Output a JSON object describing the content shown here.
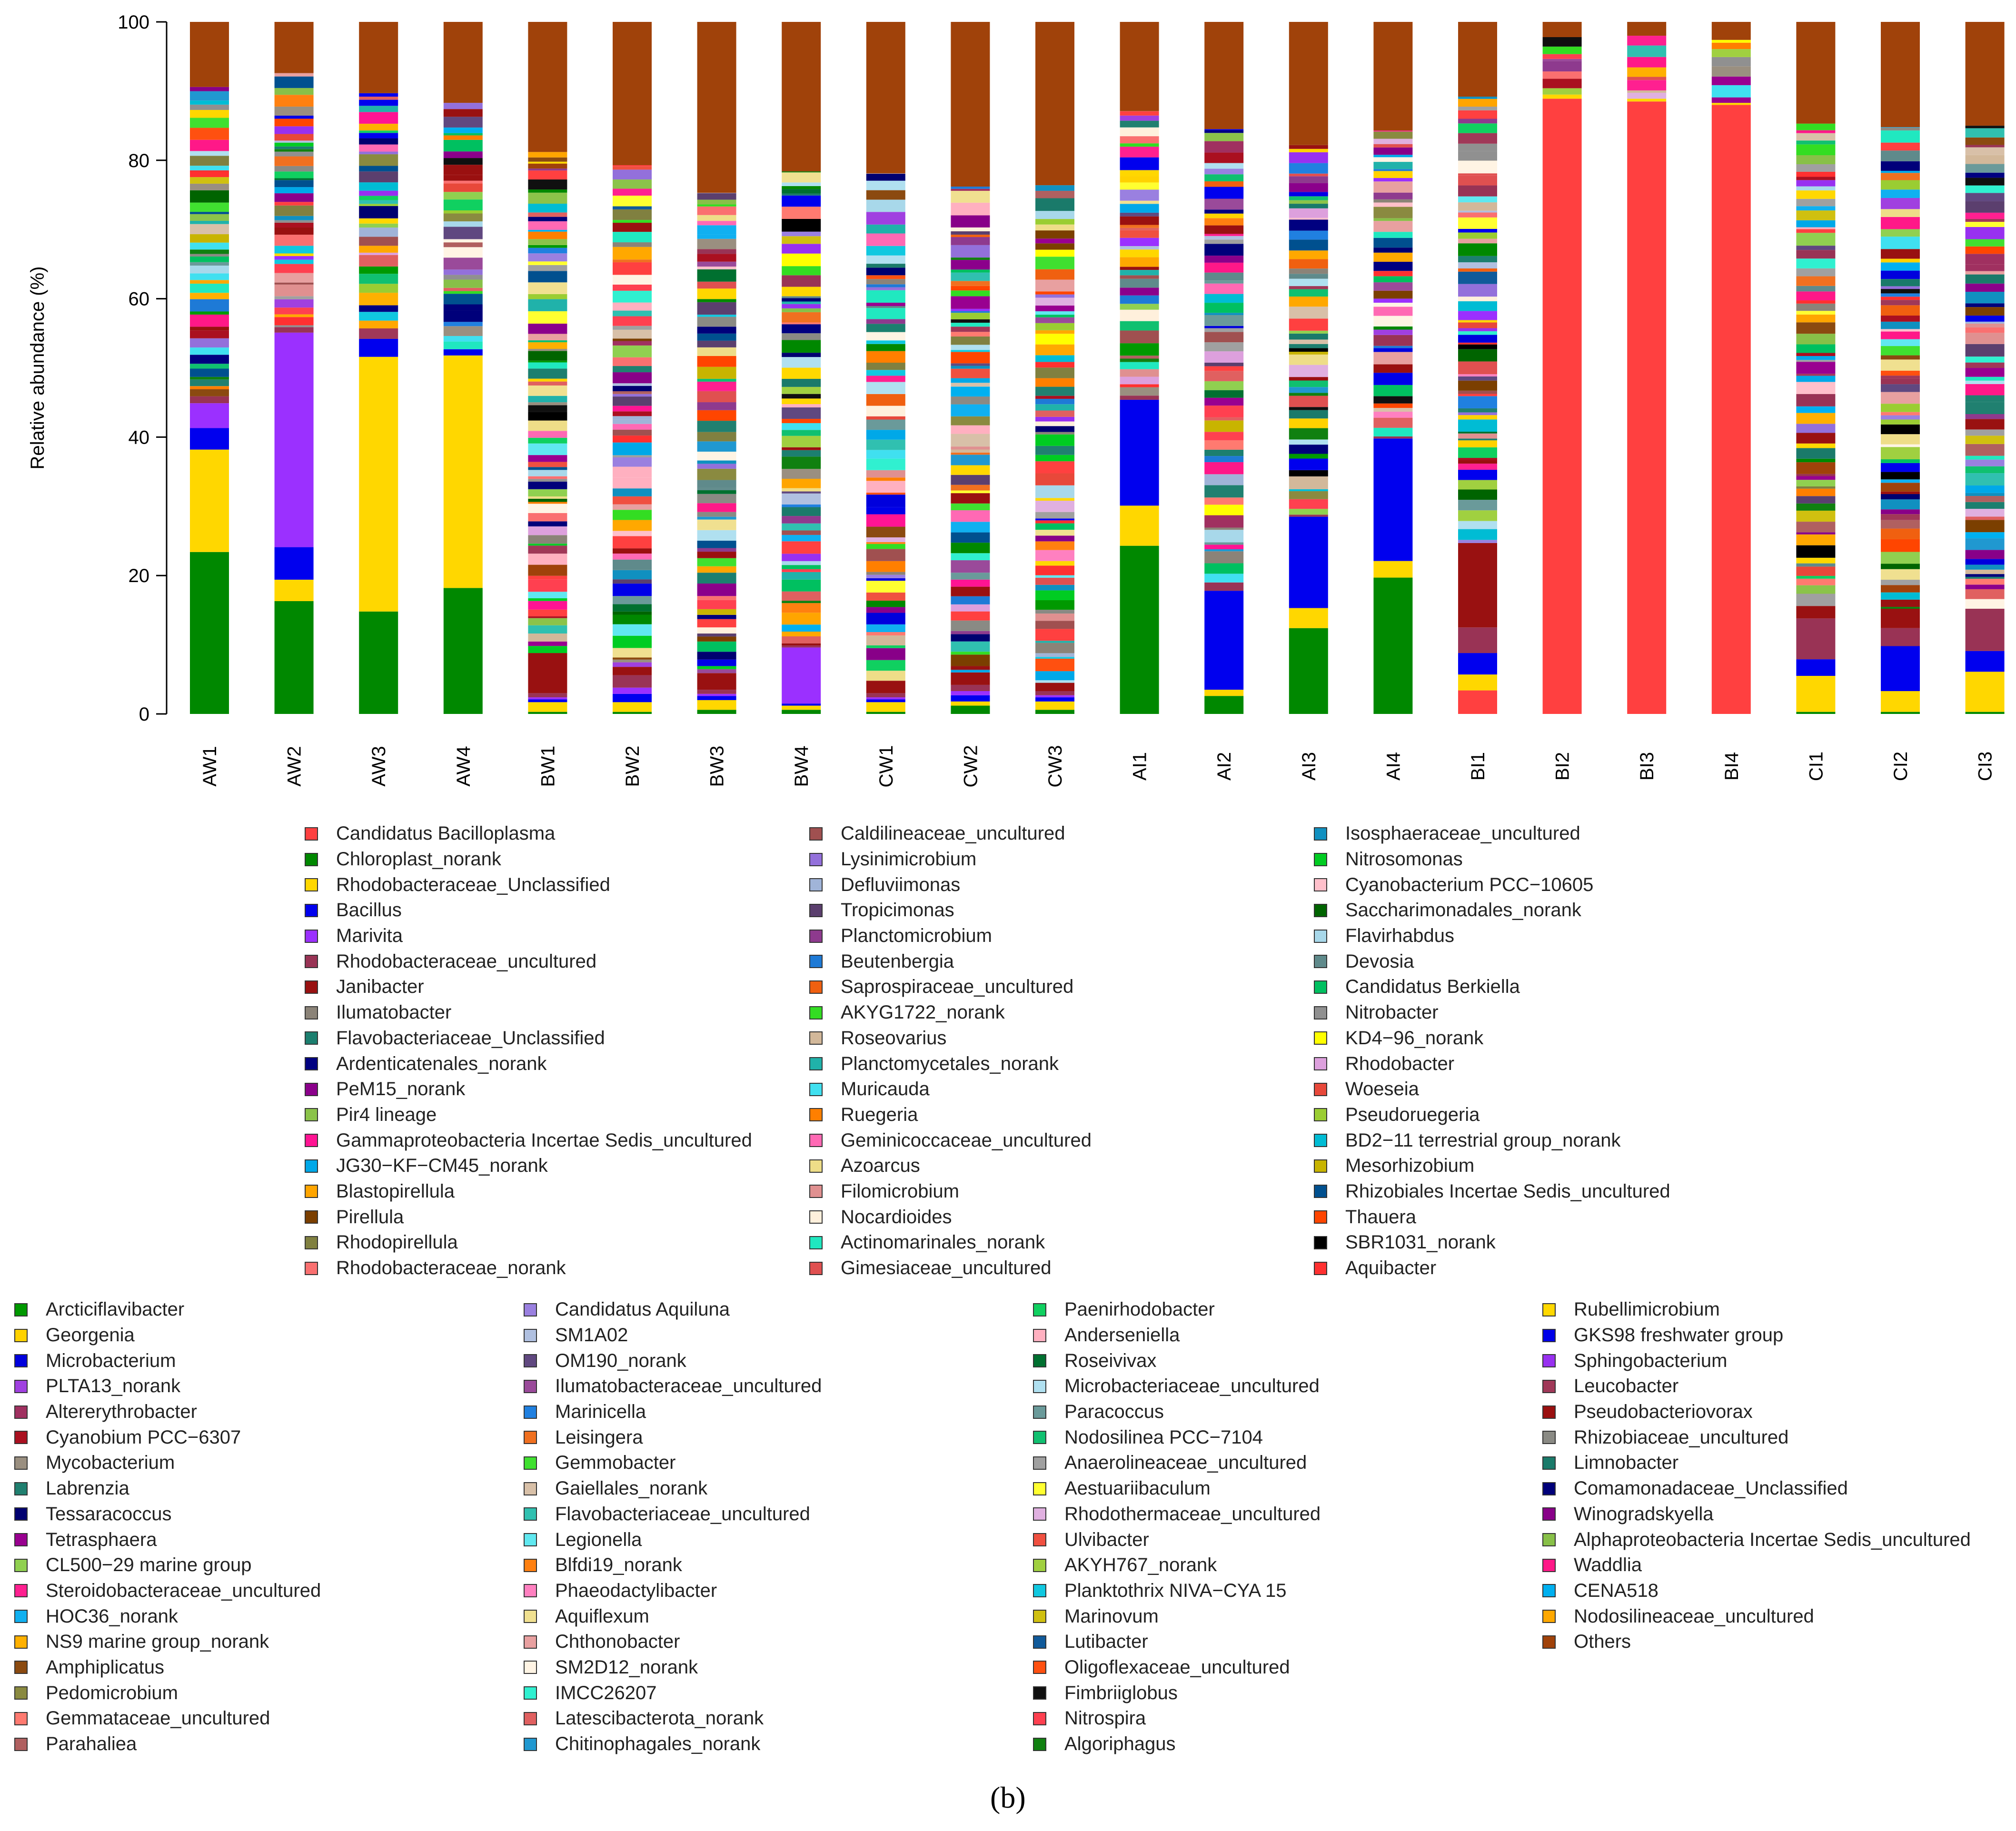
{
  "chart_data": {
    "type": "bar",
    "stacked": true,
    "ylabel": "Relative abundance (%)",
    "ylim": [
      0,
      100
    ],
    "yticks": [
      "0",
      "20",
      "40",
      "60",
      "80",
      "100"
    ],
    "categories": [
      "AW1",
      "AW2",
      "AW3",
      "AW4",
      "BW1",
      "BW2",
      "BW3",
      "BW4",
      "CW1",
      "CW2",
      "CW3",
      "AI1",
      "AI2",
      "AI3",
      "AI4",
      "BI1",
      "BI2",
      "BI3",
      "BI4",
      "CI1",
      "CI2",
      "CI3"
    ],
    "major_series": [
      {
        "name": "Candidatus Bacilloplasma",
        "color": "#ff4040",
        "values": [
          0,
          0,
          0,
          0,
          0,
          0,
          0,
          0,
          0,
          0,
          0,
          0,
          0,
          0,
          0,
          3.4,
          88.9,
          88.5,
          88.0,
          0,
          0,
          0
        ]
      },
      {
        "name": "Chloroplast_norank",
        "color": "#008800",
        "values": [
          23.4,
          16.3,
          14.8,
          18.2,
          0.3,
          0.3,
          0.6,
          0.6,
          0.3,
          1.2,
          0.6,
          24.3,
          2.6,
          12.4,
          19.7,
          0,
          0,
          0,
          0,
          0.3,
          0.3,
          0.3
        ]
      },
      {
        "name": "Rhodobacteraceae_Unclassified",
        "color": "#ffd700",
        "values": [
          14.8,
          3.1,
          36.8,
          33.6,
          1.4,
          1.4,
          1.4,
          0.6,
          1.4,
          0.6,
          1.2,
          5.8,
          0.9,
          2.9,
          2.4,
          2.3,
          0.6,
          0.4,
          0.3,
          5.2,
          3.0,
          5.8
        ]
      },
      {
        "name": "Bacillus",
        "color": "#0000ee",
        "values": [
          3.1,
          4.7,
          2.6,
          0.9,
          0.4,
          1.2,
          0.6,
          0.3,
          0.4,
          0.9,
          0.6,
          15.3,
          14.3,
          13.2,
          17.7,
          3.1,
          0,
          0,
          0,
          2.4,
          6.5,
          3.0
        ]
      },
      {
        "name": "Marivita",
        "color": "#9b30ff",
        "values": [
          3.6,
          31.0,
          0,
          0,
          0.3,
          0.9,
          0.3,
          8.1,
          0.3,
          0.6,
          0.3,
          0,
          0,
          0,
          0,
          0,
          0,
          0,
          0,
          0,
          0,
          0
        ]
      },
      {
        "name": "Rhodobacteraceae_uncultured",
        "color": "#993355",
        "values": [
          1.0,
          0.8,
          0,
          0,
          0.6,
          1.8,
          0.6,
          0.3,
          0.6,
          0.9,
          0.6,
          0.6,
          1.2,
          0.3,
          0.3,
          3.7,
          0,
          0,
          0,
          5.9,
          2.6,
          6.1
        ]
      },
      {
        "name": "Janibacter",
        "color": "#991111",
        "values": [
          0,
          0,
          0,
          0,
          5.8,
          1.2,
          2.4,
          0.3,
          1.8,
          1.8,
          1.2,
          0,
          0,
          0,
          0,
          12.2,
          0,
          0,
          0,
          1.8,
          2.8,
          0
        ]
      },
      {
        "name": "Others",
        "color": "#a0420a",
        "values": [
          9.4,
          7.4,
          10.3,
          11.7,
          18.8,
          20.7,
          24.7,
          21.6,
          21.9,
          23.8,
          23.6,
          12.9,
          15.5,
          17.8,
          15.7,
          10.8,
          2.2,
          2.0,
          2.6,
          14.7,
          15.2,
          15.0
        ]
      }
    ],
    "legend_top": [
      [
        "Candidatus Bacilloplasma",
        "#ff4040"
      ],
      [
        "Chloroplast_norank",
        "#008800"
      ],
      [
        "Rhodobacteraceae_Unclassified",
        "#ffd700"
      ],
      [
        "Bacillus",
        "#0000ee"
      ],
      [
        "Marivita",
        "#9b30ff"
      ],
      [
        "Rhodobacteraceae_uncultured",
        "#993355"
      ],
      [
        "Janibacter",
        "#991111"
      ],
      [
        "Ilumatobacter",
        "#8b8378"
      ],
      [
        "Flavobacteriaceae_Unclassified",
        "#1c7f6f"
      ],
      [
        "Ardenticatenales_norank",
        "#000080"
      ],
      [
        "PeM15_norank",
        "#8b008b"
      ],
      [
        "Pir4 lineage",
        "#8bc34a"
      ],
      [
        "Gammaproteobacteria Incertae Sedis_uncultured",
        "#ff1493"
      ],
      [
        "JG30−KF−CM45_norank",
        "#00a8e8"
      ],
      [
        "Blastopirellula",
        "#ffa500"
      ],
      [
        "Pirellula",
        "#7b3f00"
      ],
      [
        "Rhodopirellula",
        "#808040"
      ],
      [
        "Rhodobacteraceae_norank",
        "#fa7070"
      ],
      [
        "Caldilineaceae_uncultured",
        "#a05050"
      ],
      [
        "Lysinimicrobium",
        "#9370db"
      ],
      [
        "Defluviimonas",
        "#a0b4d8"
      ],
      [
        "Tropicimonas",
        "#5b3f6e"
      ],
      [
        "Planctomicrobium",
        "#8e3a8e"
      ],
      [
        "Beutenbergia",
        "#1e7ad6"
      ],
      [
        "Saprospiraceae_uncultured",
        "#f06010"
      ],
      [
        "AKYG1722_norank",
        "#33dd22"
      ],
      [
        "Roseovarius",
        "#d2b89a"
      ],
      [
        "Planctomycetales_norank",
        "#20b2aa"
      ],
      [
        "Muricauda",
        "#40e0f0"
      ],
      [
        "Ruegeria",
        "#ff7f00"
      ],
      [
        "Geminicoccaceae_uncultured",
        "#ff69b4"
      ],
      [
        "Azoarcus",
        "#eedd88"
      ],
      [
        "Filomicrobium",
        "#e09090"
      ],
      [
        "Nocardioides",
        "#fff0dc"
      ],
      [
        "Actinomarinales_norank",
        "#20e8c0"
      ],
      [
        "Gimesiaceae_uncultured",
        "#e05050"
      ],
      [
        "Isosphaeraceae_uncultured",
        "#1090c0"
      ],
      [
        "Nitrosomonas",
        "#00cc22"
      ],
      [
        "Cyanobacterium PCC−10605",
        "#ffc0cb"
      ],
      [
        "Saccharimonadales_norank",
        "#006400"
      ],
      [
        "Flavirhabdus",
        "#a8d8ea"
      ],
      [
        "Devosia",
        "#5f8a8b"
      ],
      [
        "Candidatus Berkiella",
        "#00c060"
      ],
      [
        "Nitrobacter",
        "#909090"
      ],
      [
        "KD4−96_norank",
        "#ffff00"
      ],
      [
        "Rhodobacter",
        "#dda0dd"
      ],
      [
        "Woeseia",
        "#e8483a"
      ],
      [
        "Pseudoruegeria",
        "#9acd32"
      ],
      [
        "BD2−11 terrestrial group_norank",
        "#00bcd4"
      ],
      [
        "Mesorhizobium",
        "#c8b400"
      ],
      [
        "Rhizobiales Incertae Sedis_uncultured",
        "#00508f"
      ],
      [
        "Thauera",
        "#ff4500"
      ],
      [
        "SBR1031_norank",
        "#000000"
      ],
      [
        "Aquibacter",
        "#ff3030"
      ]
    ],
    "legend_bottom": [
      [
        "Arcticiflavibacter",
        "#009900"
      ],
      [
        "Georgenia",
        "#ffd200"
      ],
      [
        "Microbacterium",
        "#0000dd"
      ],
      [
        "PLTA13_norank",
        "#a040e0"
      ],
      [
        "Altererythrobacter",
        "#a03060"
      ],
      [
        "Cyanobium PCC−6307",
        "#aa1020"
      ],
      [
        "Mycobacterium",
        "#9a8f80"
      ],
      [
        "Labrenzia",
        "#208070"
      ],
      [
        "Tessaracoccus",
        "#000070"
      ],
      [
        "Tetrasphaera",
        "#990090"
      ],
      [
        "CL500−29 marine group",
        "#90d050"
      ],
      [
        "Steroidobacteraceae_uncultured",
        "#ff2090"
      ],
      [
        "HOC36_norank",
        "#10b0f0"
      ],
      [
        "NS9 marine group_norank",
        "#ffb000"
      ],
      [
        "Amphiplicatus",
        "#8b4a10"
      ],
      [
        "Pedomicrobium",
        "#8a8a40"
      ],
      [
        "Gemmataceae_uncultured",
        "#ff7a70"
      ],
      [
        "Parahaliea",
        "#b06060"
      ],
      [
        "Candidatus Aquiluna",
        "#9a80e0"
      ],
      [
        "SM1A02",
        "#b0c0e0"
      ],
      [
        "OM190_norank",
        "#604880"
      ],
      [
        "Ilumatobacteraceae_uncultured",
        "#9a4a9a"
      ],
      [
        "Marinicella",
        "#2080e0"
      ],
      [
        "Leisingera",
        "#f07020"
      ],
      [
        "Gemmobacter",
        "#40e030"
      ],
      [
        "Gaiellales_norank",
        "#d8c0a8"
      ],
      [
        "Flavobacteriaceae_uncultured",
        "#30c0b0"
      ],
      [
        "Legionella",
        "#60e8f0"
      ],
      [
        "Blfdi19_norank",
        "#ff8010"
      ],
      [
        "Phaeodactylibacter",
        "#ff80c0"
      ],
      [
        "Aquiflexum",
        "#f0e090"
      ],
      [
        "Chthonobacter",
        "#e8a0a0"
      ],
      [
        "SM2D12_norank",
        "#fff4e4"
      ],
      [
        "IMCC26207",
        "#30f0d0"
      ],
      [
        "Latescibacterota_norank",
        "#e06060"
      ],
      [
        "Chitinophagales_norank",
        "#2098d0"
      ],
      [
        "Paenirhodobacter",
        "#10d060"
      ],
      [
        "Anderseniella",
        "#ffb0c0"
      ],
      [
        "Roseivivax",
        "#007030"
      ],
      [
        "Microbacteriaceae_uncultured",
        "#b0e0f0"
      ],
      [
        "Paracoccus",
        "#6a9a9a"
      ],
      [
        "Nodosilinea PCC−7104",
        "#10c070"
      ],
      [
        "Anaerolineaceae_uncultured",
        "#a0a0a0"
      ],
      [
        "Aestuariibaculum",
        "#ffff30"
      ],
      [
        "Rhodothermaceae_uncultured",
        "#e0b0e0"
      ],
      [
        "Ulvibacter",
        "#f05040"
      ],
      [
        "AKYH767_norank",
        "#a0d040"
      ],
      [
        "Planktothrix NIVA−CYA 15",
        "#10c8e0"
      ],
      [
        "Marinovum",
        "#d0c010"
      ],
      [
        "Lutibacter",
        "#105a9a"
      ],
      [
        "Oligoflexaceae_uncultured",
        "#ff5010"
      ],
      [
        "Fimbriiglobus",
        "#101010"
      ],
      [
        "Nitrospira",
        "#ff4050"
      ],
      [
        "Algoriphagus",
        "#108010"
      ],
      [
        "Rubellimicrobium",
        "#ffd800"
      ],
      [
        "GKS98 freshwater group",
        "#0000e8"
      ],
      [
        "Sphingobacterium",
        "#9830f0"
      ],
      [
        "Leucobacter",
        "#a03858"
      ],
      [
        "Pseudobacteriovorax",
        "#9a1010"
      ],
      [
        "Rhizobiaceae_uncultured",
        "#8a8a84"
      ],
      [
        "Limnobacter",
        "#1a7a6a"
      ],
      [
        "Comamonadaceae_Unclassified",
        "#00007a"
      ],
      [
        "Winogradskyella",
        "#880088"
      ],
      [
        "Alphaproteobacteria Incertae Sedis_uncultured",
        "#88c048"
      ],
      [
        "Waddlia",
        "#ff1888"
      ],
      [
        "CENA518",
        "#00b0f0"
      ],
      [
        "Nodosilineaceae_uncultured",
        "#ffa800"
      ],
      [
        "Others",
        "#a0420a"
      ]
    ],
    "panel_label": "(b)"
  }
}
